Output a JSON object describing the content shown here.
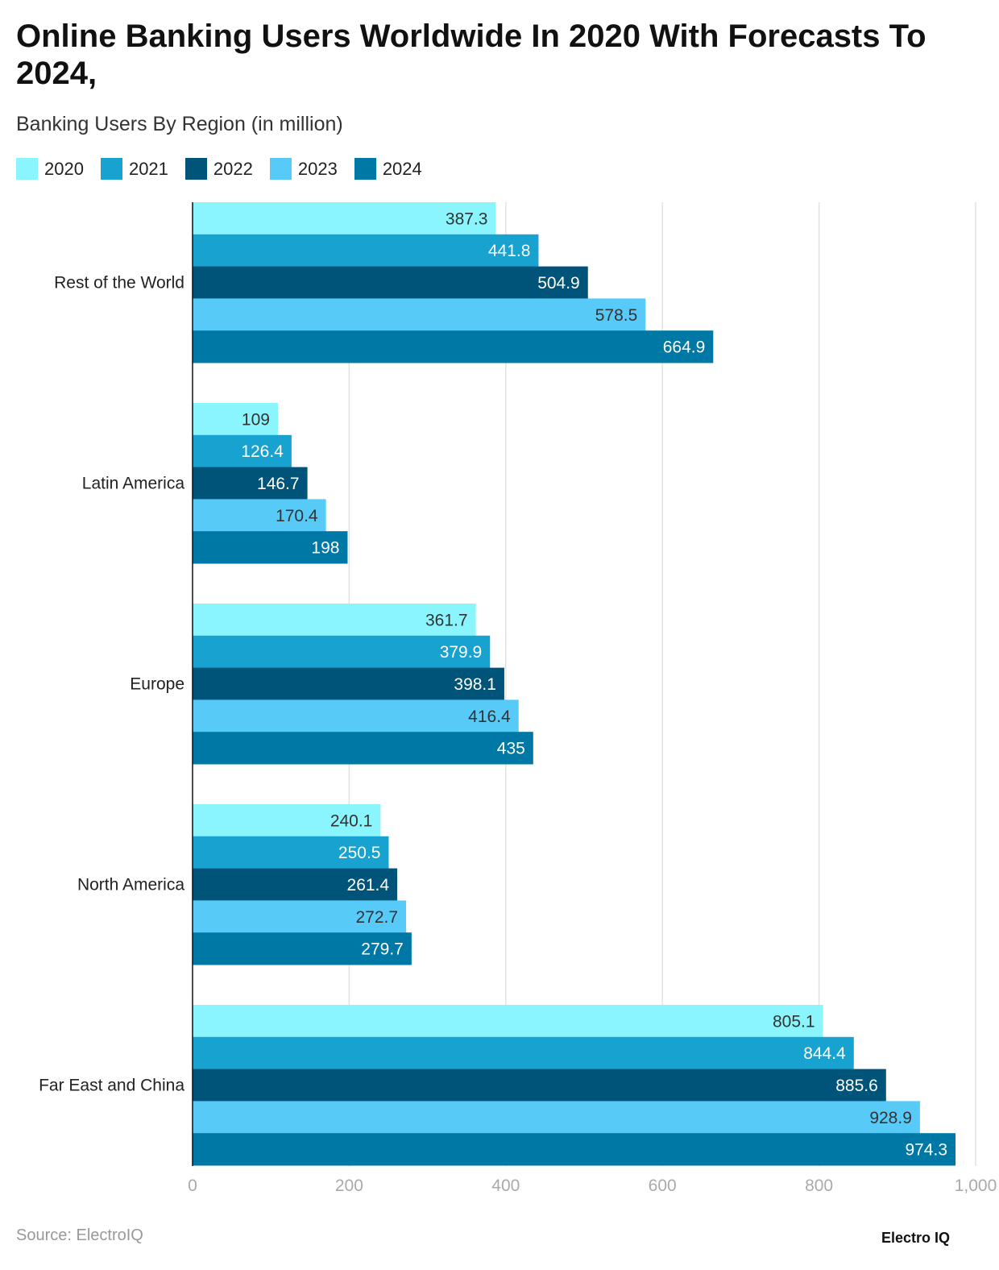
{
  "title": "Online Banking Users Worldwide In 2020 With Forecasts To 2024,",
  "subtitle": "Banking Users By Region (in million)",
  "source": "Source: ElectroIQ",
  "logo": "Electro IQ",
  "chart_data": {
    "type": "bar",
    "orientation": "horizontal",
    "title": "Online Banking Users Worldwide In 2020 With Forecasts To 2024,",
    "subtitle": "Banking Users By Region (in million)",
    "categories": [
      "Rest of the World",
      "Latin America",
      "Europe",
      "North America",
      "Far East and China"
    ],
    "series": [
      {
        "name": "2020",
        "color": "#8af5fd",
        "values": [
          387.3,
          109,
          361.7,
          240.1,
          805.1
        ]
      },
      {
        "name": "2021",
        "color": "#18a2cf",
        "values": [
          441.8,
          126.4,
          379.9,
          250.5,
          844.4
        ]
      },
      {
        "name": "2022",
        "color": "#00547a",
        "values": [
          504.9,
          146.7,
          398.1,
          261.4,
          885.6
        ]
      },
      {
        "name": "2023",
        "color": "#58caf8",
        "values": [
          578.5,
          170.4,
          416.4,
          272.7,
          928.9
        ]
      },
      {
        "name": "2024",
        "color": "#0078a5",
        "values": [
          664.9,
          198,
          435,
          279.7,
          974.3
        ]
      }
    ],
    "xlim": [
      0,
      1000
    ],
    "xticks": [
      "0",
      "200",
      "400",
      "600",
      "800",
      "1,000"
    ],
    "grid": true,
    "legend": "top-left"
  }
}
